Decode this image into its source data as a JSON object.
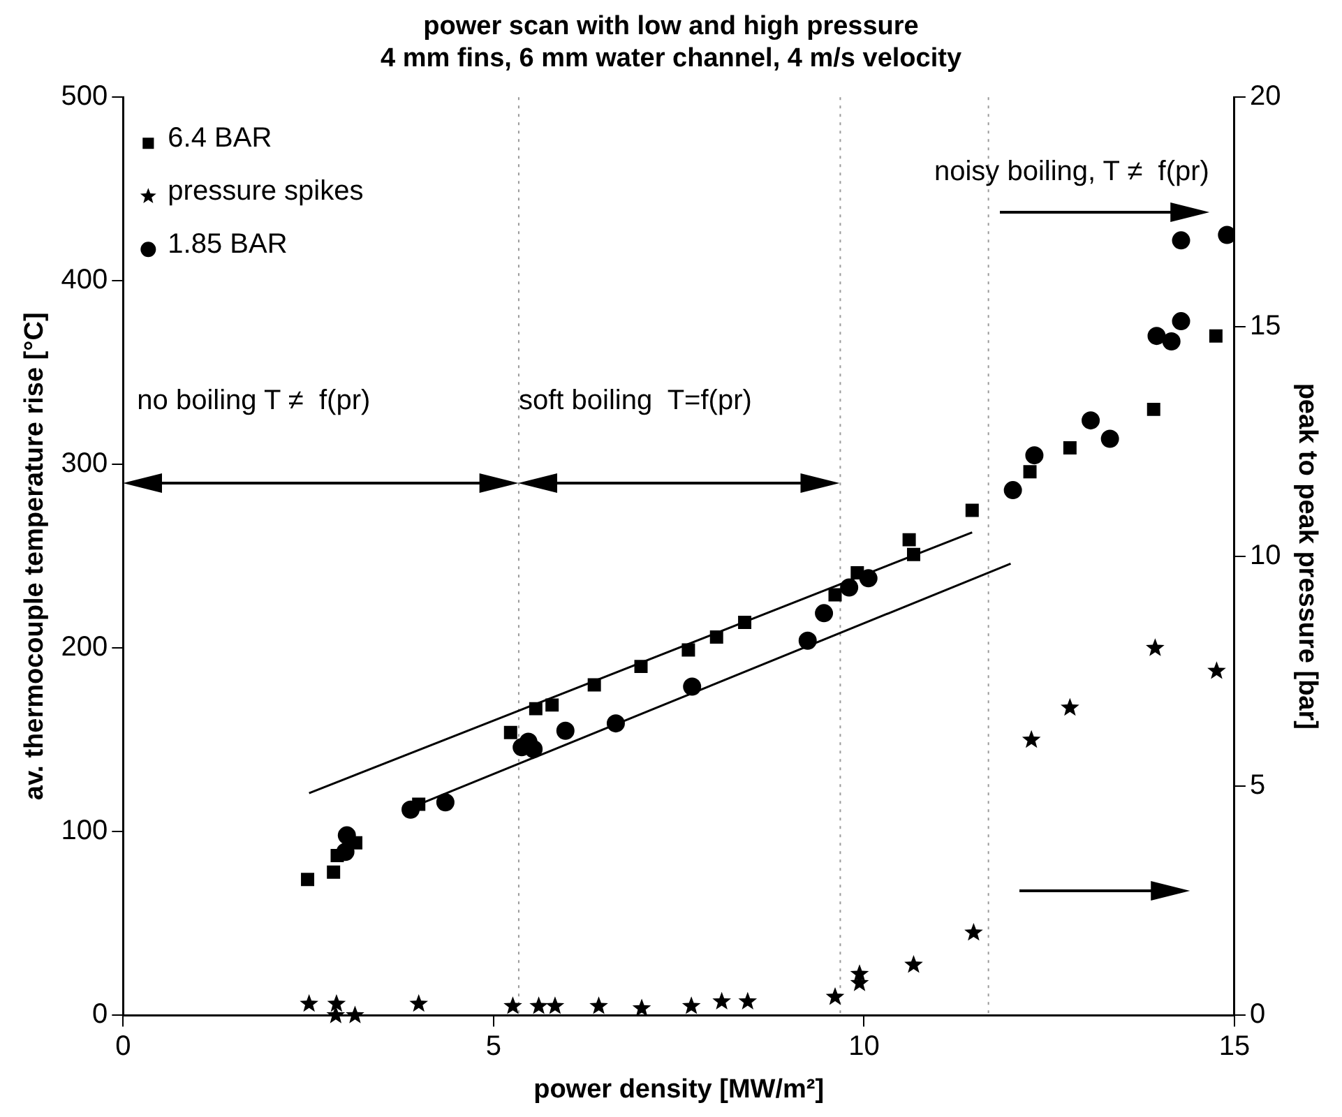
{
  "chart_data": {
    "type": "scatter",
    "title": "power scan with low and high pressure",
    "subtitle": "4 mm fins, 6 mm water channel, 4 m/s velocity",
    "xlabel": "power density [MW/m²]",
    "ylabel": "av. thermocouple temperature rise [°C]",
    "y2label": "peak to peak pressure [bar]",
    "xlim": [
      0,
      15
    ],
    "xticks": [
      0,
      5,
      10,
      15
    ],
    "ylim": [
      0,
      500
    ],
    "yticks": [
      0,
      100,
      200,
      300,
      400,
      500
    ],
    "y2lim": [
      0,
      20
    ],
    "y2ticks": [
      0,
      5,
      10,
      15,
      20
    ],
    "grid": false,
    "legend": "top left",
    "series": [
      {
        "name": "6.4 BAR",
        "color": "#000000",
        "marker": "square",
        "x": [
          2.49,
          2.84,
          2.89,
          3.14,
          3.99,
          5.23,
          5.57,
          5.79,
          6.36,
          6.99,
          7.63,
          8.01,
          8.39,
          9.61,
          9.91,
          10.61,
          10.67,
          11.46,
          12.24,
          12.78,
          13.91,
          14.75
        ],
        "values": [
          74,
          78,
          87,
          94,
          115,
          154,
          167,
          169,
          180,
          190,
          199,
          206,
          214,
          229,
          241,
          259,
          251,
          275,
          296,
          309,
          330,
          370
        ]
      },
      {
        "name": "pressure spikes",
        "color": "#000000",
        "marker": "star",
        "axis": "y2",
        "x": [
          2.51,
          2.88,
          2.87,
          3.13,
          3.99,
          5.26,
          5.61,
          5.83,
          6.42,
          7.0,
          7.67,
          8.08,
          8.43,
          9.61,
          9.94,
          9.94,
          10.67,
          11.48,
          12.26,
          12.78,
          13.93,
          14.76
        ],
        "values": [
          0.25,
          0.25,
          0,
          0,
          0.25,
          0.2,
          0.2,
          0.2,
          0.2,
          0.15,
          0.2,
          0.3,
          0.3,
          0.4,
          0.7,
          0.9,
          1.1,
          1.8,
          6.0,
          6.7,
          8.0,
          7.5
        ]
      },
      {
        "name": "1.85 BAR",
        "color": "#000000",
        "marker": "circle",
        "x": [
          3.0,
          3.02,
          3.88,
          4.35,
          5.38,
          5.47,
          5.54,
          5.97,
          6.65,
          7.68,
          9.24,
          9.46,
          9.8,
          10.06,
          12.01,
          12.3,
          13.06,
          13.32,
          13.95,
          14.15,
          14.28,
          14.28,
          14.9
        ],
        "values": [
          89,
          98,
          112,
          116,
          146,
          149,
          145,
          155,
          159,
          179,
          204,
          219,
          233,
          238,
          286,
          305,
          324,
          314,
          370,
          367,
          378,
          422,
          425
        ]
      },
      {
        "type": "line",
        "color": "#000000",
        "marker": "none",
        "x": [
          2.51,
          11.46
        ],
        "values": [
          121,
          263
        ]
      },
      {
        "type": "line",
        "color": "#000000",
        "marker": "none",
        "x": [
          4.0,
          11.98
        ],
        "values": [
          115,
          246
        ]
      }
    ],
    "ref_lines": [
      {
        "axis": "x",
        "value": 5.34,
        "color": "#999999",
        "line_style": "dotted"
      },
      {
        "axis": "x",
        "value": 9.68,
        "color": "#999999",
        "line_style": "dotted"
      },
      {
        "axis": "x",
        "value": 11.68,
        "color": "#999999",
        "line_style": "dotted"
      }
    ],
    "annotations": [
      "no boiling T ≠  f(pr)",
      "soft boiling  T=f(pr)",
      "noisy boiling, T ≠  f(pr)"
    ]
  }
}
